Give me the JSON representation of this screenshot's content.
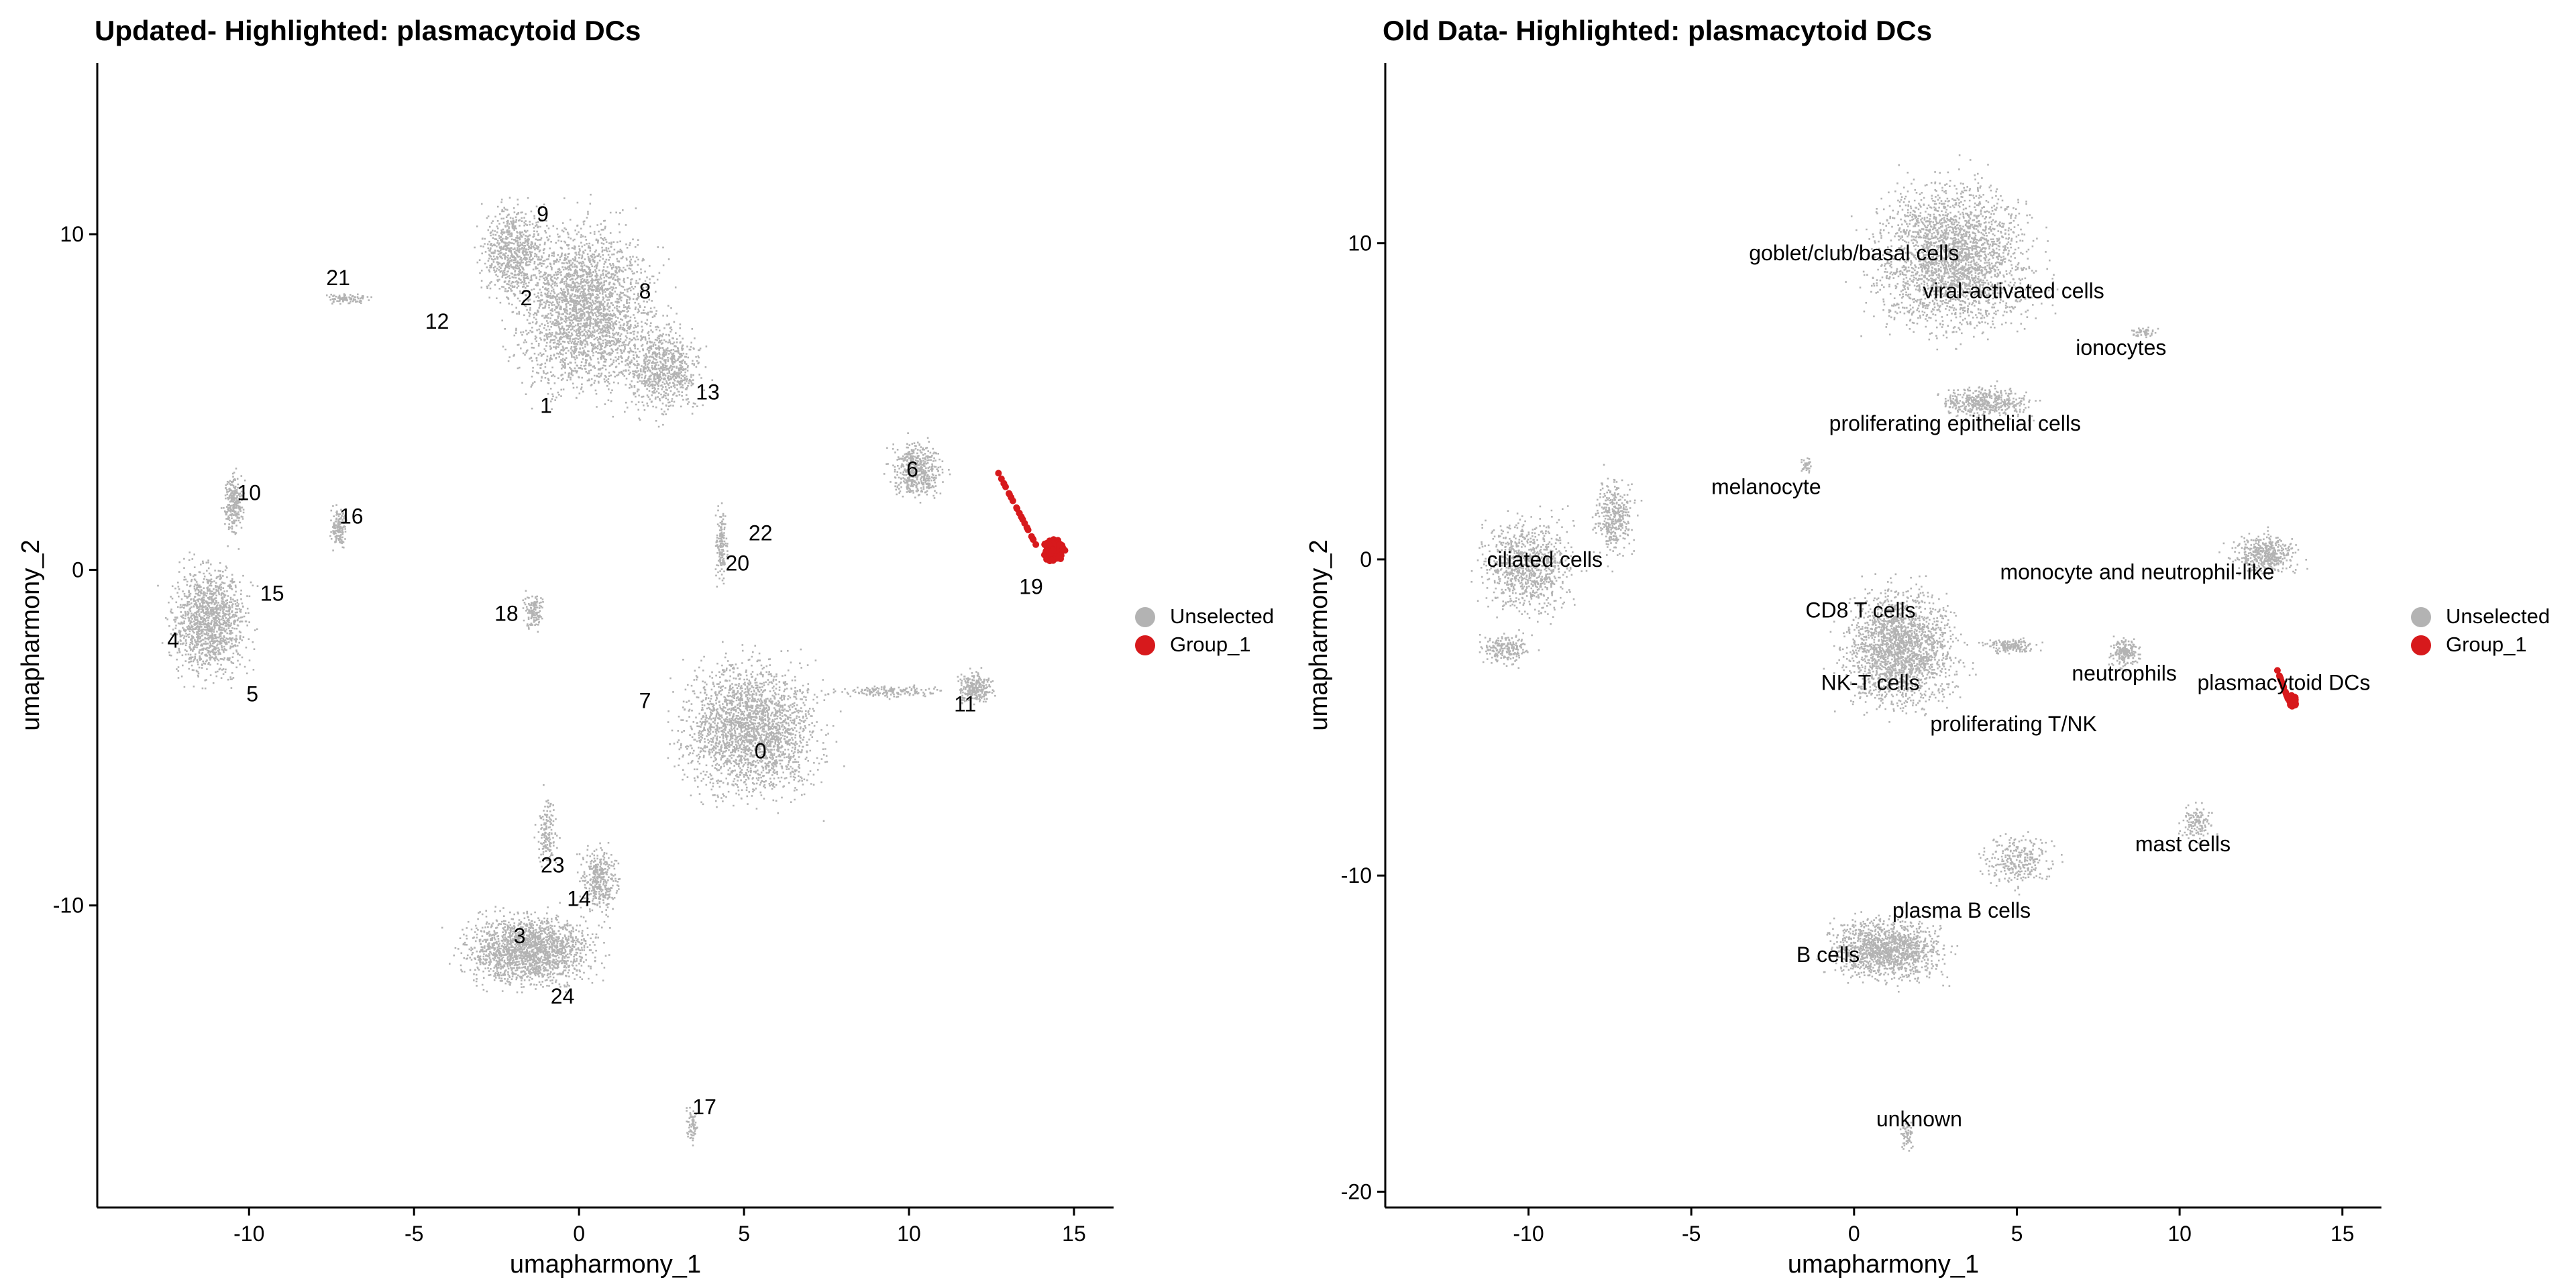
{
  "colors": {
    "unselected": "#b3b3b3",
    "group": "#d7191c",
    "axis": "#000000"
  },
  "chart_data": [
    {
      "type": "scatter",
      "title": "Updated- Highlighted: plasmacytoid DCs",
      "xlabel": "umapharmony_1",
      "ylabel": "umapharmony_2",
      "xlim": [
        -14.6,
        16.2
      ],
      "ylim": [
        -19.0,
        15.1
      ],
      "x_ticks": [
        -10,
        -5,
        0,
        5,
        10,
        15
      ],
      "y_ticks": [
        -10,
        0,
        10
      ],
      "grid": false,
      "legend_position": "right",
      "legend": [
        "Unselected",
        "Group_1"
      ],
      "clusters": [
        {
          "label": "9",
          "x": -1.1,
          "y": 10.6
        },
        {
          "label": "2",
          "x": -1.6,
          "y": 8.1
        },
        {
          "label": "8",
          "x": 2.0,
          "y": 8.3
        },
        {
          "label": "1",
          "x": -1.0,
          "y": 4.9
        },
        {
          "label": "13",
          "x": 3.9,
          "y": 5.3
        },
        {
          "label": "21",
          "x": -7.3,
          "y": 8.7
        },
        {
          "label": "12",
          "x": -4.3,
          "y": 7.4
        },
        {
          "label": "10",
          "x": -10.0,
          "y": 2.3
        },
        {
          "label": "16",
          "x": -6.9,
          "y": 1.6
        },
        {
          "label": "15",
          "x": -9.3,
          "y": -0.7
        },
        {
          "label": "4",
          "x": -12.3,
          "y": -2.1
        },
        {
          "label": "5",
          "x": -9.9,
          "y": -3.7
        },
        {
          "label": "18",
          "x": -2.2,
          "y": -1.3
        },
        {
          "label": "22",
          "x": 5.5,
          "y": 1.1
        },
        {
          "label": "20",
          "x": 4.8,
          "y": 0.2
        },
        {
          "label": "6",
          "x": 10.1,
          "y": 3.0
        },
        {
          "label": "19",
          "x": 13.7,
          "y": -0.5
        },
        {
          "label": "7",
          "x": 2.0,
          "y": -3.9
        },
        {
          "label": "0",
          "x": 5.5,
          "y": -5.4
        },
        {
          "label": "11",
          "x": 11.7,
          "y": -4.0
        },
        {
          "label": "23",
          "x": -0.8,
          "y": -8.8
        },
        {
          "label": "14",
          "x": 0.0,
          "y": -9.8
        },
        {
          "label": "3",
          "x": -1.8,
          "y": -10.9
        },
        {
          "label": "24",
          "x": -0.5,
          "y": -12.7
        },
        {
          "label": "17",
          "x": 3.8,
          "y": -16.0
        }
      ],
      "highlight": {
        "series": "Group_1",
        "cluster": "19",
        "x_range": [
          12.7,
          14.8
        ],
        "y_range": [
          -0.2,
          2.9
        ]
      }
    },
    {
      "type": "scatter",
      "title": "Old Data- Highlighted: plasmacytoid DCs",
      "xlabel": "umapharmony_1",
      "ylabel": "umapharmony_2",
      "xlim": [
        -14.4,
        16.2
      ],
      "ylim": [
        -20.5,
        15.7
      ],
      "x_ticks": [
        -10,
        -5,
        0,
        5,
        10,
        15
      ],
      "y_ticks": [
        -20,
        -10,
        0,
        10
      ],
      "grid": false,
      "legend_position": "right",
      "legend": [
        "Unselected",
        "Group_1"
      ],
      "clusters": [
        {
          "label": "goblet/club/basal cells",
          "x": 0.0,
          "y": 9.7
        },
        {
          "label": "viral-activated cells",
          "x": 4.9,
          "y": 8.5
        },
        {
          "label": "ionocytes",
          "x": 8.2,
          "y": 6.7
        },
        {
          "label": "proliferating epithelial cells",
          "x": 3.1,
          "y": 4.3
        },
        {
          "label": "melanocyte",
          "x": -2.7,
          "y": 2.3
        },
        {
          "label": "ciliated cells",
          "x": -9.5,
          "y": 0.0
        },
        {
          "label": "monocyte and neutrophil-like",
          "x": 8.7,
          "y": -0.4
        },
        {
          "label": "CD8 T cells",
          "x": 0.2,
          "y": -1.6
        },
        {
          "label": "NK-T cells",
          "x": 0.5,
          "y": -3.9
        },
        {
          "label": "neutrophils",
          "x": 8.3,
          "y": -3.6
        },
        {
          "label": "plasmacytoid DCs",
          "x": 13.2,
          "y": -3.9
        },
        {
          "label": "proliferating T/NK",
          "x": 4.9,
          "y": -5.2
        },
        {
          "label": "mast cells",
          "x": 10.1,
          "y": -9.0
        },
        {
          "label": "plasma B cells",
          "x": 3.3,
          "y": -11.1
        },
        {
          "label": "B cells",
          "x": -0.8,
          "y": -12.5
        },
        {
          "label": "unknown",
          "x": 2.0,
          "y": -17.7
        }
      ],
      "highlight": {
        "series": "Group_1",
        "cluster": "plasmacytoid DCs",
        "x_range": [
          13.0,
          13.6
        ],
        "y_range": [
          -4.8,
          -3.5
        ]
      }
    }
  ]
}
